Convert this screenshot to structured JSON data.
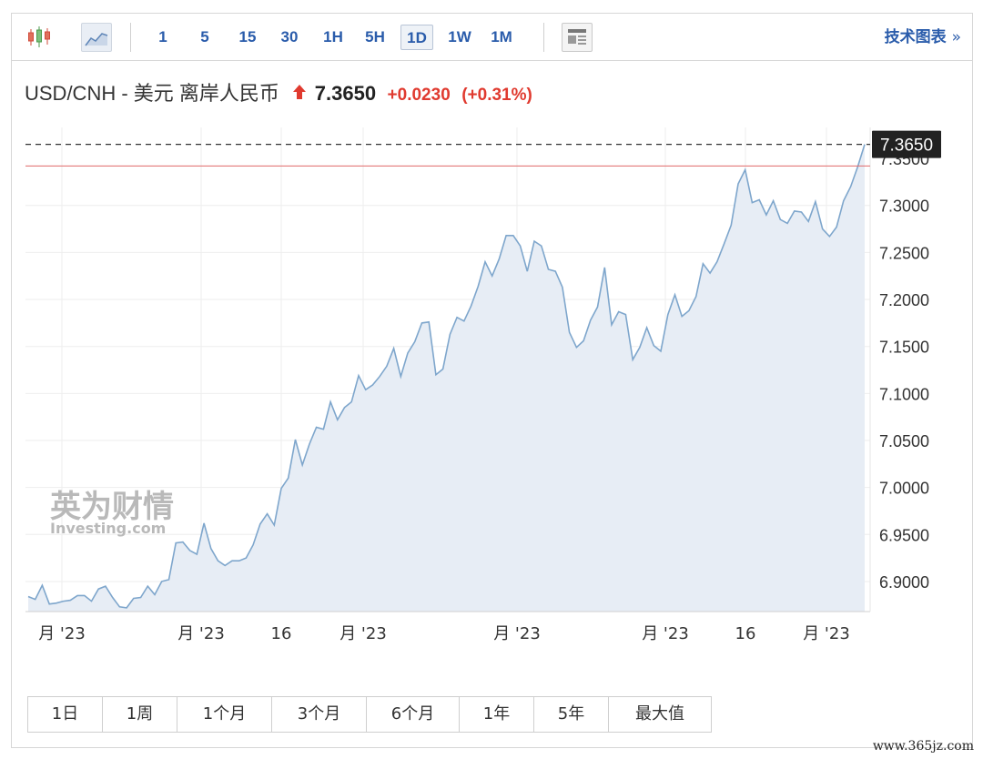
{
  "toolbar": {
    "icons": [
      "candlestick-icon",
      "area-chart-icon",
      "news-icon"
    ],
    "intervals": [
      "1",
      "5",
      "15",
      "30",
      "1H",
      "5H",
      "1D",
      "1W",
      "1M"
    ],
    "active_interval": "1D",
    "tech_chart_label": "技术图表",
    "tech_chart_chevron": "»"
  },
  "quote": {
    "name": "USD/CNH - 美元 离岸人民币",
    "price": "7.3650",
    "change": "+0.0230",
    "change_pct": "(+0.31%)",
    "direction": "up",
    "up_color": "#e03a2f"
  },
  "ranges": [
    "1日",
    "1周",
    "1个月",
    "3个月",
    "6个月",
    "1年",
    "5年",
    "最大值"
  ],
  "watermark": "www.365jz.com",
  "chart_data": {
    "type": "area",
    "logo_text": "英为财情",
    "logo_sub": "Investing.com",
    "current_label": "7.3650",
    "hidden_label": "7.3500",
    "prev_close": 7.342,
    "ylim": [
      6.868,
      7.383
    ],
    "yticks": [
      "7.3000",
      "7.2500",
      "7.2000",
      "7.1500",
      "7.1000",
      "7.0500",
      "7.0000",
      "6.9500",
      "6.9000"
    ],
    "xticks": [
      "月 '23",
      "月 '23",
      "16",
      "月 '23",
      "月 '23",
      "月 '23",
      "16",
      "月 '23"
    ],
    "grid": true,
    "line_color": "#7ea6cc",
    "fill_color": "#e7edf5",
    "values": [
      6.884,
      6.881,
      6.896,
      6.876,
      6.877,
      6.879,
      6.88,
      6.885,
      6.885,
      6.879,
      6.892,
      6.895,
      6.883,
      6.873,
      6.872,
      6.882,
      6.883,
      6.895,
      6.886,
      6.9,
      6.902,
      6.941,
      6.942,
      6.933,
      6.929,
      6.962,
      6.935,
      6.922,
      6.917,
      6.922,
      6.922,
      6.925,
      6.939,
      6.961,
      6.972,
      6.96,
      6.999,
      7.01,
      7.051,
      7.024,
      7.046,
      7.064,
      7.062,
      7.091,
      7.072,
      7.085,
      7.091,
      7.119,
      7.104,
      7.109,
      7.118,
      7.129,
      7.148,
      7.118,
      7.143,
      7.155,
      7.175,
      7.176,
      7.12,
      7.126,
      7.163,
      7.181,
      7.177,
      7.193,
      7.214,
      7.24,
      7.225,
      7.243,
      7.268,
      7.268,
      7.257,
      7.23,
      7.262,
      7.257,
      7.232,
      7.23,
      7.213,
      7.165,
      7.149,
      7.156,
      7.178,
      7.192,
      7.234,
      7.173,
      7.187,
      7.184,
      7.136,
      7.149,
      7.17,
      7.151,
      7.145,
      7.184,
      7.205,
      7.182,
      7.188,
      7.203,
      7.238,
      7.228,
      7.24,
      7.259,
      7.279,
      7.323,
      7.338,
      7.303,
      7.306,
      7.29,
      7.305,
      7.285,
      7.281,
      7.294,
      7.293,
      7.283,
      7.304,
      7.275,
      7.267,
      7.277,
      7.305,
      7.32,
      7.341,
      7.365
    ]
  }
}
